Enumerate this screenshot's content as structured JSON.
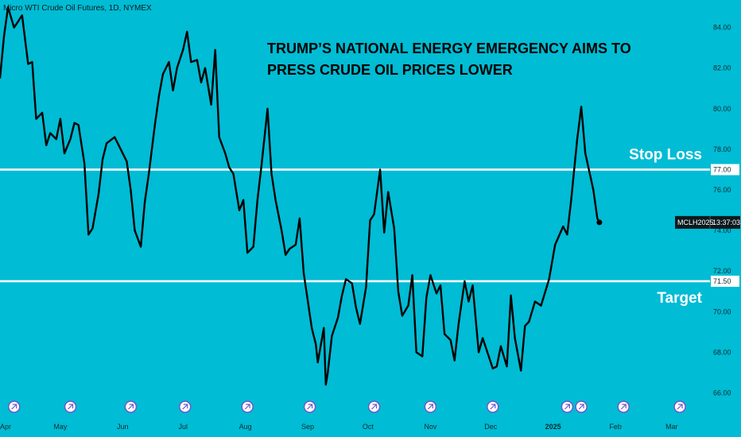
{
  "chart_title": "Micro WTI Crude Oil Futures, 1D, NYMEX",
  "headline": {
    "line1": "TRUMP’S NATIONAL ENERGY EMERGENCY AIMS TO",
    "line2": "PRESS CRUDE OIL PRICES LOWER"
  },
  "colors": {
    "background": "#00BCD4",
    "price_line": "#000000",
    "level_lines": "#FFFFFF",
    "event_icon": "#6A5ACD"
  },
  "chart_data": {
    "type": "line",
    "title": "Micro WTI Crude Oil Futures, 1D, NYMEX",
    "xlabel": "",
    "ylabel": "",
    "ylim": [
      65,
      85.2
    ],
    "x_range": [
      "2024-04-01",
      "2025-03-20"
    ],
    "x_ticks": [
      {
        "label": "Apr",
        "date": "2024-04-01"
      },
      {
        "label": "May",
        "date": "2024-05-01"
      },
      {
        "label": "Jun",
        "date": "2024-06-01"
      },
      {
        "label": "Jul",
        "date": "2024-07-01"
      },
      {
        "label": "Aug",
        "date": "2024-08-01"
      },
      {
        "label": "Sep",
        "date": "2024-09-01"
      },
      {
        "label": "Oct",
        "date": "2024-10-01"
      },
      {
        "label": "Nov",
        "date": "2024-11-01"
      },
      {
        "label": "Dec",
        "date": "2024-12-01"
      },
      {
        "label": "2025",
        "date": "2025-01-01"
      },
      {
        "label": "Feb",
        "date": "2025-02-01"
      },
      {
        "label": "Mar",
        "date": "2025-03-01"
      }
    ],
    "y_ticks": [
      "66.00",
      "68.00",
      "70.00",
      "72.00",
      "74.00",
      "76.00",
      "78.00",
      "80.00",
      "82.00",
      "84.00"
    ],
    "series": [
      {
        "name": "MCLH2025",
        "x": [
          "2024-04-01",
          "2024-04-03",
          "2024-04-05",
          "2024-04-08",
          "2024-04-10",
          "2024-04-12",
          "2024-04-15",
          "2024-04-17",
          "2024-04-19",
          "2024-04-22",
          "2024-04-24",
          "2024-04-26",
          "2024-04-29",
          "2024-05-01",
          "2024-05-03",
          "2024-05-06",
          "2024-05-08",
          "2024-05-10",
          "2024-05-13",
          "2024-05-15",
          "2024-05-17",
          "2024-05-20",
          "2024-05-22",
          "2024-05-24",
          "2024-05-28",
          "2024-05-30",
          "2024-06-03",
          "2024-06-05",
          "2024-06-07",
          "2024-06-10",
          "2024-06-12",
          "2024-06-14",
          "2024-06-17",
          "2024-06-19",
          "2024-06-21",
          "2024-06-24",
          "2024-06-26",
          "2024-06-28",
          "2024-07-01",
          "2024-07-03",
          "2024-07-05",
          "2024-07-08",
          "2024-07-10",
          "2024-07-12",
          "2024-07-15",
          "2024-07-17",
          "2024-07-19",
          "2024-07-22",
          "2024-07-24",
          "2024-07-26",
          "2024-07-29",
          "2024-07-31",
          "2024-08-02",
          "2024-08-05",
          "2024-08-07",
          "2024-08-09",
          "2024-08-12",
          "2024-08-14",
          "2024-08-16",
          "2024-08-19",
          "2024-08-21",
          "2024-08-23",
          "2024-08-26",
          "2024-08-28",
          "2024-08-30",
          "2024-09-03",
          "2024-09-05",
          "2024-09-06",
          "2024-09-09",
          "2024-09-10",
          "2024-09-11",
          "2024-09-13",
          "2024-09-16",
          "2024-09-18",
          "2024-09-20",
          "2024-09-23",
          "2024-09-25",
          "2024-09-27",
          "2024-09-30",
          "2024-10-02",
          "2024-10-04",
          "2024-10-07",
          "2024-10-09",
          "2024-10-11",
          "2024-10-14",
          "2024-10-16",
          "2024-10-18",
          "2024-10-21",
          "2024-10-23",
          "2024-10-25",
          "2024-10-28",
          "2024-10-30",
          "2024-11-01",
          "2024-11-04",
          "2024-11-06",
          "2024-11-08",
          "2024-11-11",
          "2024-11-13",
          "2024-11-15",
          "2024-11-18",
          "2024-11-20",
          "2024-11-22",
          "2024-11-25",
          "2024-11-27",
          "2024-12-02",
          "2024-12-04",
          "2024-12-06",
          "2024-12-09",
          "2024-12-11",
          "2024-12-13",
          "2024-12-16",
          "2024-12-18",
          "2024-12-20",
          "2024-12-23",
          "2024-12-26",
          "2024-12-30",
          "2025-01-02",
          "2025-01-06",
          "2025-01-08",
          "2025-01-10",
          "2025-01-13",
          "2025-01-15",
          "2025-01-17",
          "2025-01-21",
          "2025-01-23",
          "2025-01-24"
        ],
        "y": [
          81.5,
          83.6,
          85,
          84,
          84.3,
          84.6,
          82.2,
          82.3,
          79.5,
          79.8,
          78.2,
          78.8,
          78.5,
          79.5,
          77.8,
          78.5,
          79.3,
          79.2,
          77.3,
          73.8,
          74.1,
          75.8,
          77.5,
          78.3,
          78.6,
          78.2,
          77.4,
          76,
          74,
          73.2,
          75.4,
          76.8,
          79.2,
          80.6,
          81.7,
          82.3,
          80.9,
          82,
          82.9,
          83.8,
          82.3,
          82.4,
          81.3,
          82,
          80.2,
          82.9,
          78.6,
          77.8,
          77.1,
          76.8,
          75,
          75.5,
          72.9,
          73.2,
          75.5,
          77.2,
          80,
          76.8,
          75.5,
          74,
          72.8,
          73.1,
          73.3,
          74.6,
          71.9,
          69.2,
          68.4,
          67.5,
          69.2,
          66.4,
          67,
          68.8,
          69.7,
          70.8,
          71.6,
          71.4,
          70.2,
          69.4,
          71.2,
          74.5,
          74.8,
          77,
          73.9,
          75.9,
          74.1,
          71,
          69.8,
          70.3,
          71.8,
          68,
          67.8,
          70.7,
          71.8,
          70.9,
          71.3,
          68.9,
          68.6,
          67.6,
          69.4,
          71.5,
          70.5,
          71.3,
          68,
          68.7,
          67.2,
          67.3,
          68.3,
          67.3,
          70.8,
          68.7,
          67.1,
          69.3,
          69.5,
          70.5,
          70.3,
          71.6,
          73.3,
          74.2,
          73.8,
          75.5,
          78.5,
          80.1,
          77.8,
          76,
          74.6,
          74.4
        ]
      }
    ],
    "levels": [
      {
        "name": "Stop Loss",
        "value": 77.0,
        "badge": "77.00"
      },
      {
        "name": "Target",
        "value": 71.5,
        "badge": "71.50"
      }
    ],
    "last_price": 74.4,
    "last_price_badge": {
      "symbol": "MCLH2025",
      "countdown": "13:37:03"
    },
    "event_markers": [
      "2024-04-08",
      "2024-05-06",
      "2024-06-05",
      "2024-07-02",
      "2024-08-02",
      "2024-09-02",
      "2024-10-04",
      "2024-11-01",
      "2024-12-02",
      "2025-01-08",
      "2025-01-15",
      "2025-02-05",
      "2025-03-05"
    ],
    "grid": false,
    "legend": "none"
  }
}
